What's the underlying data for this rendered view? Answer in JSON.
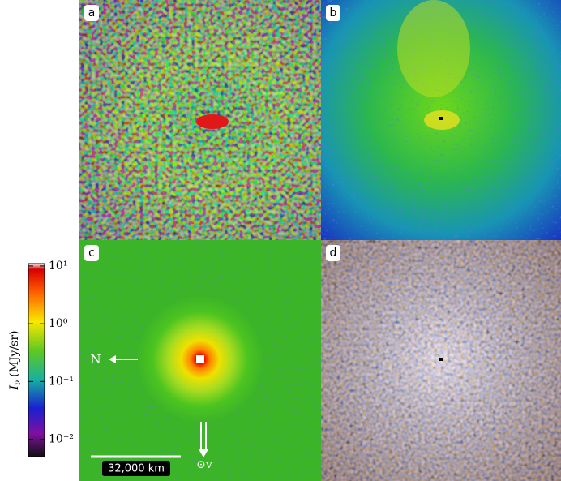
{
  "panels": [
    {
      "label": "a"
    },
    {
      "label": "b"
    },
    {
      "label": "c"
    },
    {
      "label": "d"
    }
  ],
  "colorbar": {
    "symbol": "I",
    "subscript": "ν",
    "unit": "(MJy/sr)",
    "scale": "log",
    "lim": [
      0.005,
      11
    ],
    "ticks": [
      {
        "value": 10,
        "label": "10¹"
      },
      {
        "value": 1,
        "label": "10⁰"
      },
      {
        "value": 0.1,
        "label": "10⁻¹"
      },
      {
        "value": 0.01,
        "label": "10⁻²"
      }
    ]
  },
  "annotations": {
    "north": "N",
    "scale_bar": "32,000 km",
    "velocity": "⊙v"
  }
}
